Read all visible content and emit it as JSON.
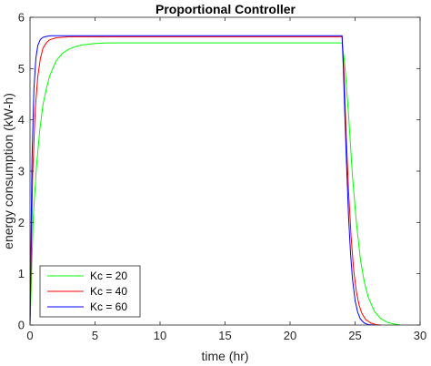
{
  "chart_data": {
    "type": "line",
    "title": "Proportional Controller",
    "xlabel": "time (hr)",
    "ylabel": "energy consumption (kW-h)",
    "xlim": [
      0,
      30
    ],
    "ylim": [
      0,
      6
    ],
    "xticks": [
      0,
      5,
      10,
      15,
      20,
      25,
      30
    ],
    "yticks": [
      0,
      1,
      2,
      3,
      4,
      5,
      6
    ],
    "xtick_labels": [
      "0",
      "5",
      "10",
      "15",
      "20",
      "25",
      "30"
    ],
    "ytick_labels": [
      "0",
      "1",
      "2",
      "3",
      "4",
      "5",
      "6"
    ],
    "grid": false,
    "legend_position": "bottom-left",
    "series": [
      {
        "name": "Kc = 20",
        "color": "#00ff00",
        "x": [
          0,
          0.25,
          0.5,
          0.75,
          1.0,
          1.25,
          1.5,
          2.0,
          2.5,
          3.0,
          3.5,
          4.0,
          5.0,
          6.0,
          8.0,
          12.0,
          18.0,
          23.9,
          24.0,
          24.2,
          24.5,
          24.8,
          25.1,
          25.4,
          25.7,
          26.0,
          26.5,
          27.0,
          27.5,
          28.0,
          28.5
        ],
        "y": [
          0,
          2.1,
          3.1,
          3.8,
          4.3,
          4.6,
          4.85,
          5.15,
          5.3,
          5.38,
          5.43,
          5.46,
          5.49,
          5.5,
          5.5,
          5.5,
          5.5,
          5.5,
          5.5,
          5.1,
          4.1,
          2.9,
          2.0,
          1.3,
          0.85,
          0.55,
          0.26,
          0.12,
          0.05,
          0.02,
          0.0
        ]
      },
      {
        "name": "Kc = 40",
        "color": "#ff0000",
        "x": [
          0,
          0.2,
          0.4,
          0.6,
          0.8,
          1.0,
          1.25,
          1.5,
          2.0,
          2.5,
          3.0,
          4.0,
          6.0,
          12.0,
          18.0,
          23.9,
          24.0,
          24.15,
          24.3,
          24.5,
          24.7,
          24.9,
          25.1,
          25.3,
          25.5,
          25.8,
          26.2,
          26.6,
          27.0
        ],
        "y": [
          0,
          2.9,
          4.2,
          4.85,
          5.2,
          5.4,
          5.5,
          5.56,
          5.6,
          5.61,
          5.62,
          5.62,
          5.62,
          5.62,
          5.62,
          5.62,
          5.62,
          4.9,
          3.8,
          2.6,
          1.7,
          1.05,
          0.65,
          0.4,
          0.24,
          0.11,
          0.04,
          0.01,
          0.0
        ]
      },
      {
        "name": "Kc = 60",
        "color": "#0000ff",
        "x": [
          0,
          0.15,
          0.3,
          0.45,
          0.6,
          0.8,
          1.0,
          1.3,
          1.6,
          2.0,
          3.0,
          6.0,
          12.0,
          18.0,
          23.9,
          24.0,
          24.1,
          24.2,
          24.35,
          24.5,
          24.65,
          24.8,
          25.0,
          25.2,
          25.4,
          25.7,
          26.0,
          26.5
        ],
        "y": [
          0,
          3.2,
          4.6,
          5.2,
          5.45,
          5.57,
          5.61,
          5.63,
          5.64,
          5.64,
          5.64,
          5.64,
          5.64,
          5.64,
          5.64,
          5.64,
          5.0,
          4.2,
          3.1,
          2.1,
          1.4,
          0.9,
          0.48,
          0.25,
          0.12,
          0.04,
          0.01,
          0.0
        ]
      }
    ]
  }
}
